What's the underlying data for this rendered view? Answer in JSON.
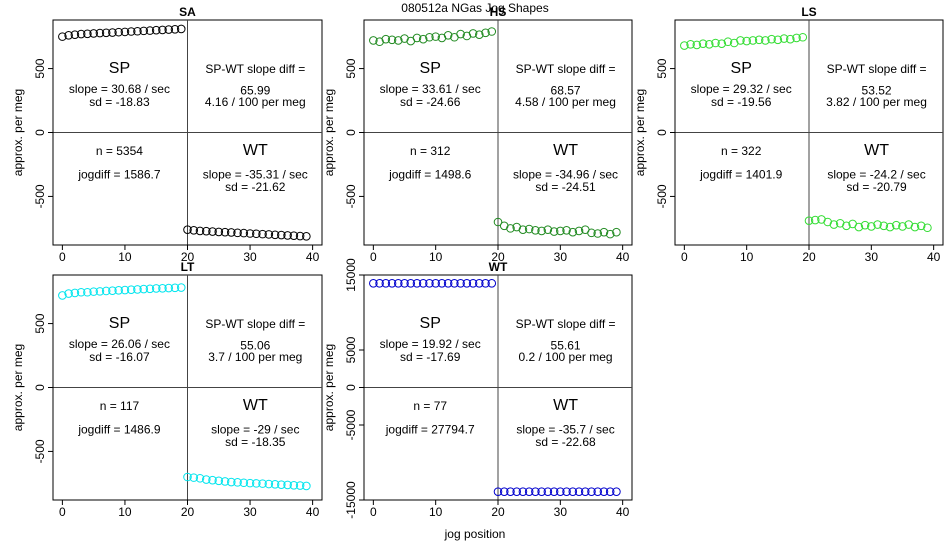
{
  "figure": {
    "title": "080512a   NGas Jog Shapes",
    "xlabel": "jog position"
  },
  "chart_data": [
    {
      "type": "scatter",
      "panel": "SA",
      "title": "SA",
      "color": "#000000",
      "ylabel": "approx. per meg",
      "xlim": [
        0,
        40
      ],
      "ylim": [
        -880,
        880
      ],
      "xticks": [
        "0",
        "10",
        "20",
        "30",
        "40"
      ],
      "yticks": [
        "-500",
        "0",
        "500"
      ],
      "yticks_at": [
        -500,
        0,
        500
      ],
      "sp": {
        "x": [
          0,
          1,
          2,
          3,
          4,
          5,
          6,
          7,
          8,
          9,
          10,
          11,
          12,
          13,
          14,
          15,
          16,
          17,
          18,
          19
        ],
        "y": [
          750,
          760,
          765,
          770,
          772,
          775,
          778,
          780,
          782,
          785,
          787,
          790,
          792,
          795,
          797,
          800,
          802,
          805,
          807,
          810
        ]
      },
      "wt": {
        "x": [
          20,
          21,
          22,
          23,
          24,
          25,
          26,
          27,
          28,
          29,
          30,
          31,
          32,
          33,
          34,
          35,
          36,
          37,
          38,
          39
        ],
        "y": [
          -760,
          -765,
          -770,
          -772,
          -775,
          -778,
          -780,
          -782,
          -785,
          -787,
          -790,
          -792,
          -795,
          -797,
          -800,
          -802,
          -805,
          -807,
          -810,
          -812
        ]
      },
      "text": {
        "sp_label": "SP",
        "sp_slope": "slope = 30.68 / sec",
        "sp_sd": "sd = -18.83",
        "diff_label": "SP-WT slope diff =",
        "diff_value": "65.99",
        "diff_per": "4.16 / 100 per meg",
        "n": "n = 5354",
        "jogdiff": "jogdiff = 1586.7",
        "wt_label": "WT",
        "wt_slope": "slope = -35.31 / sec",
        "wt_sd": "sd = -21.62"
      }
    },
    {
      "type": "scatter",
      "panel": "HS",
      "title": "HS",
      "color": "#228B22",
      "ylabel": "approx. per meg",
      "xlim": [
        0,
        40
      ],
      "ylim": [
        -880,
        880
      ],
      "xticks": [
        "0",
        "10",
        "20",
        "30",
        "40"
      ],
      "yticks": [
        "-500",
        "0",
        "500"
      ],
      "yticks_at": [
        -500,
        0,
        500
      ],
      "sp": {
        "x": [
          0,
          1,
          2,
          3,
          4,
          5,
          6,
          7,
          8,
          9,
          10,
          11,
          12,
          13,
          14,
          15,
          16,
          17,
          18,
          19
        ],
        "y": [
          720,
          710,
          730,
          725,
          720,
          735,
          715,
          740,
          730,
          745,
          750,
          740,
          760,
          745,
          770,
          755,
          775,
          765,
          780,
          790
        ]
      },
      "wt": {
        "x": [
          20,
          21,
          22,
          23,
          24,
          25,
          26,
          27,
          28,
          29,
          30,
          31,
          32,
          33,
          34,
          35,
          36,
          37,
          38,
          39
        ],
        "y": [
          -700,
          -730,
          -750,
          -740,
          -760,
          -755,
          -765,
          -770,
          -760,
          -775,
          -770,
          -765,
          -780,
          -770,
          -760,
          -785,
          -790,
          -780,
          -795,
          -780
        ]
      },
      "text": {
        "sp_label": "SP",
        "sp_slope": "slope = 33.61 / sec",
        "sp_sd": "sd = -24.66",
        "diff_label": "SP-WT slope diff =",
        "diff_value": "68.57",
        "diff_per": "4.58 / 100 per meg",
        "n": "n = 312",
        "jogdiff": "jogdiff = 1498.6",
        "wt_label": "WT",
        "wt_slope": "slope = -34.96 / sec",
        "wt_sd": "sd = -24.51"
      }
    },
    {
      "type": "scatter",
      "panel": "LS",
      "title": "LS",
      "color": "#33DD33",
      "ylabel": "approx. per meg",
      "xlim": [
        0,
        40
      ],
      "ylim": [
        -880,
        880
      ],
      "xticks": [
        "0",
        "10",
        "20",
        "30",
        "40"
      ],
      "yticks": [
        "-500",
        "0",
        "500"
      ],
      "yticks_at": [
        -500,
        0,
        500
      ],
      "sp": {
        "x": [
          0,
          1,
          2,
          3,
          4,
          5,
          6,
          7,
          8,
          9,
          10,
          11,
          12,
          13,
          14,
          15,
          16,
          17,
          18,
          19
        ],
        "y": [
          680,
          690,
          685,
          695,
          690,
          700,
          695,
          710,
          700,
          720,
          715,
          720,
          725,
          720,
          730,
          725,
          735,
          730,
          740,
          745
        ]
      },
      "wt": {
        "x": [
          20,
          21,
          22,
          23,
          24,
          25,
          26,
          27,
          28,
          29,
          30,
          31,
          32,
          33,
          34,
          35,
          36,
          37,
          38,
          39
        ],
        "y": [
          -690,
          -685,
          -680,
          -700,
          -720,
          -710,
          -730,
          -715,
          -740,
          -725,
          -735,
          -720,
          -730,
          -740,
          -725,
          -735,
          -720,
          -740,
          -730,
          -745
        ]
      },
      "text": {
        "sp_label": "SP",
        "sp_slope": "slope = 29.32 / sec",
        "sp_sd": "sd = -19.56",
        "diff_label": "SP-WT slope diff =",
        "diff_value": "53.52",
        "diff_per": "3.82 / 100 per meg",
        "n": "n = 322",
        "jogdiff": "jogdiff = 1401.9",
        "wt_label": "WT",
        "wt_slope": "slope = -24.2 / sec",
        "wt_sd": "sd = -20.79"
      }
    },
    {
      "type": "scatter",
      "panel": "LT",
      "title": "LT",
      "color": "#00E5EE",
      "ylabel": "approx. per meg",
      "xlim": [
        0,
        40
      ],
      "ylim": [
        -880,
        880
      ],
      "xticks": [
        "0",
        "10",
        "20",
        "30",
        "40"
      ],
      "yticks": [
        "-500",
        "0",
        "500"
      ],
      "yticks_at": [
        -500,
        0,
        500
      ],
      "sp": {
        "x": [
          0,
          1,
          2,
          3,
          4,
          5,
          6,
          7,
          8,
          9,
          10,
          11,
          12,
          13,
          14,
          15,
          16,
          17,
          18,
          19
        ],
        "y": [
          720,
          735,
          740,
          745,
          745,
          750,
          752,
          755,
          757,
          760,
          762,
          765,
          767,
          770,
          772,
          775,
          776,
          778,
          780,
          782
        ]
      },
      "wt": {
        "x": [
          20,
          21,
          22,
          23,
          24,
          25,
          26,
          27,
          28,
          29,
          30,
          31,
          32,
          33,
          34,
          35,
          36,
          37,
          38,
          39
        ],
        "y": [
          -700,
          -705,
          -710,
          -720,
          -725,
          -730,
          -735,
          -740,
          -742,
          -745,
          -748,
          -750,
          -752,
          -755,
          -757,
          -760,
          -762,
          -765,
          -767,
          -770
        ]
      },
      "text": {
        "sp_label": "SP",
        "sp_slope": "slope = 26.06 / sec",
        "sp_sd": "sd = -16.07",
        "diff_label": "SP-WT slope diff =",
        "diff_value": "55.06",
        "diff_per": "3.7 / 100 per meg",
        "n": "n = 117",
        "jogdiff": "jogdiff = 1486.9",
        "wt_label": "WT",
        "wt_slope": "slope = -29 / sec",
        "wt_sd": "sd = -18.35"
      }
    },
    {
      "type": "scatter",
      "panel": "WT",
      "title": "WT",
      "color": "#0000CD",
      "ylabel": "approx. per meg",
      "xlim": [
        0,
        40
      ],
      "ylim": [
        -15000,
        15000
      ],
      "xticks": [
        "0",
        "10",
        "20",
        "30",
        "40"
      ],
      "yticks": [
        "-15000",
        "-5000",
        "0",
        "5000",
        "15000"
      ],
      "yticks_at": [
        -15000,
        -5000,
        0,
        5000,
        15000
      ],
      "sp": {
        "x": [
          0,
          1,
          2,
          3,
          4,
          5,
          6,
          7,
          8,
          9,
          10,
          11,
          12,
          13,
          14,
          15,
          16,
          17,
          18,
          19
        ],
        "y": [
          13890,
          13890,
          13890,
          13890,
          13890,
          13890,
          13890,
          13890,
          13890,
          13890,
          13890,
          13890,
          13890,
          13890,
          13890,
          13890,
          13890,
          13890,
          13890,
          13890
        ]
      },
      "wt": {
        "x": [
          20,
          21,
          22,
          23,
          24,
          25,
          26,
          27,
          28,
          29,
          30,
          31,
          32,
          33,
          34,
          35,
          36,
          37,
          38,
          39
        ],
        "y": [
          -13890,
          -13890,
          -13890,
          -13890,
          -13890,
          -13890,
          -13890,
          -13890,
          -13890,
          -13890,
          -13890,
          -13890,
          -13890,
          -13890,
          -13890,
          -13890,
          -13890,
          -13890,
          -13890,
          -13890
        ]
      },
      "text": {
        "sp_label": "SP",
        "sp_slope": "slope = 19.92 / sec",
        "sp_sd": "sd = -17.69",
        "diff_label": "SP-WT slope diff =",
        "diff_value": "55.61",
        "diff_per": "0.2 / 100 per meg",
        "n": "n = 77",
        "jogdiff": "jogdiff = 27794.7",
        "wt_label": "WT",
        "wt_slope": "slope = -35.7 / sec",
        "wt_sd": "sd = -22.68"
      }
    }
  ]
}
